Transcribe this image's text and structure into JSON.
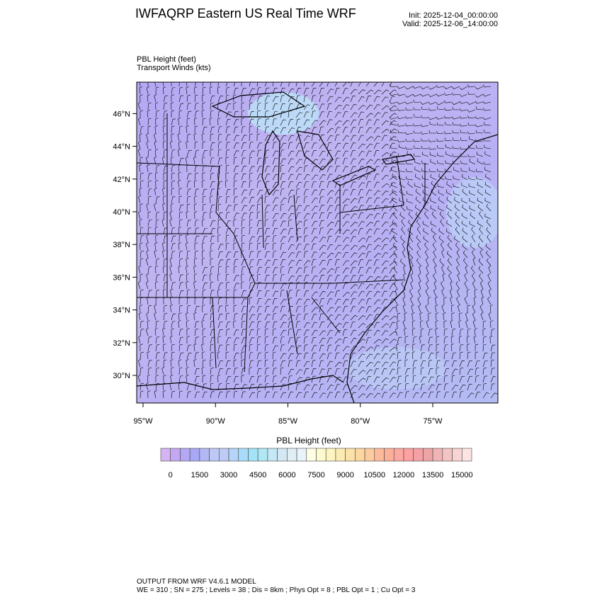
{
  "header": {
    "title": "IWFAQRP Eastern US Real Time WRF",
    "init": "Init: 2025-12-04_00:00:00",
    "valid": "Valid: 2025-12-06_14:00:00",
    "field1": "PBL Height   (feet)",
    "field2": "Transport Winds   (kts)"
  },
  "map": {
    "region": "Eastern United States",
    "lat_labels": [
      "46°N",
      "44°N",
      "42°N",
      "40°N",
      "38°N",
      "36°N",
      "34°N",
      "32°N",
      "30°N"
    ],
    "lat_values": [
      46,
      44,
      42,
      40,
      38,
      36,
      34,
      32,
      30
    ],
    "lon_labels": [
      "95°W",
      "90°W",
      "85°W",
      "80°W",
      "75°W"
    ],
    "lon_values": [
      -95,
      -90,
      -85,
      -80,
      -75
    ],
    "field_dominant_color": "#b8b0f4",
    "overlay": "wind barbs"
  },
  "colorbar": {
    "title": "PBL Height  (feet)",
    "labels": [
      "0",
      "1500",
      "3000",
      "4500",
      "6000",
      "7500",
      "9000",
      "10500",
      "12000",
      "13500",
      "15000"
    ],
    "colors": [
      "#d6b4f2",
      "#c5a8f2",
      "#b4a8f4",
      "#a8a8f4",
      "#b2b8f4",
      "#bec8f4",
      "#bcccf6",
      "#b4d4fa",
      "#a8dcfa",
      "#a4e2f8",
      "#b0e8f6",
      "#c4e8f6",
      "#d4e8f4",
      "#e0eef6",
      "#e8f4fa",
      "#fefee4",
      "#fefad0",
      "#fef4c0",
      "#fcecb4",
      "#fce2a8",
      "#fcd8a0",
      "#fccca0",
      "#fcbc9c",
      "#fcb09a",
      "#fca8a0",
      "#fca0a0",
      "#f4a0a4",
      "#eca4a4",
      "#f0b4b4",
      "#f4c4c4",
      "#f8d4d4",
      "#fce4e4"
    ]
  },
  "footer": {
    "line1": "OUTPUT FROM WRF V4.6.1 MODEL",
    "line2": "WE = 310 ; SN = 275 ; Levels = 38 ; Dis = 8km ; Phys Opt = 8 ; PBL Opt = 1 ; Cu Opt = 3"
  }
}
